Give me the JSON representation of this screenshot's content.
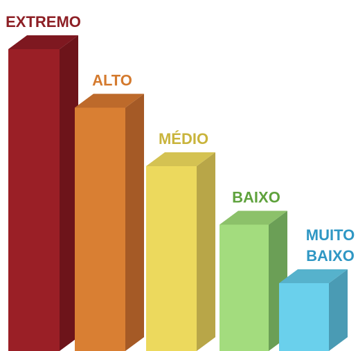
{
  "chart_data": {
    "type": "bar",
    "style": "3d-bars",
    "title": "",
    "xlabel": "",
    "ylabel": "",
    "grid": false,
    "legend": "none",
    "categories": [
      "EXTREMO",
      "ALTO",
      "MÉDIO",
      "BAIXO",
      "MUITO BAIXO"
    ],
    "category_lines": [
      [
        "EXTREMO"
      ],
      [
        "ALTO"
      ],
      [
        "MÉDIO"
      ],
      [
        "BAIXO"
      ],
      [
        "MUITO",
        "BAIXO"
      ]
    ],
    "values": [
      5,
      4,
      3,
      2,
      1
    ],
    "ylim": [
      0,
      5
    ],
    "colors": {
      "front": [
        "#9a1f26",
        "#d97f33",
        "#ecd95d",
        "#a3dc7e",
        "#6ad0ec"
      ],
      "side": [
        "#6d141a",
        "#a55a26",
        "#b8a648",
        "#6b9f56",
        "#4a9bb4"
      ],
      "top": [
        "#7e1820",
        "#bd6a2b",
        "#d4c252",
        "#8cc16a",
        "#56b2cc"
      ],
      "label": [
        "#8d1f25",
        "#d47a2e",
        "#c9b43c",
        "#5fa23d",
        "#2f97c4"
      ]
    }
  }
}
